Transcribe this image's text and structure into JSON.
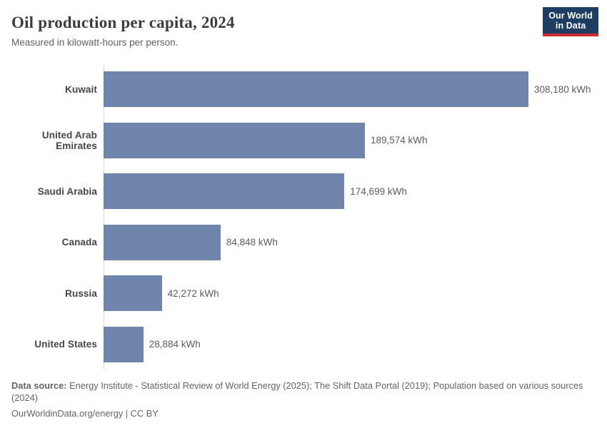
{
  "header": {
    "title": "Oil production per capita, 2024",
    "subtitle": "Measured in kilowatt-hours per person.",
    "logo": {
      "line1": "Our World",
      "line2": "in Data",
      "bg_color": "#1d3d63",
      "accent_color": "#cc2a2e"
    }
  },
  "chart_data": {
    "type": "bar",
    "orientation": "horizontal",
    "title": "Oil production per capita, 2024",
    "subtitle": "Measured in kilowatt-hours per person.",
    "unit": "kWh",
    "categories": [
      "Kuwait",
      "United Arab Emirates",
      "Saudi Arabia",
      "Canada",
      "Russia",
      "United States"
    ],
    "values": [
      308180,
      189574,
      174699,
      84848,
      42272,
      28884
    ],
    "value_labels": [
      "308,180 kWh",
      "189,574 kWh",
      "174,699 kWh",
      "84,848 kWh",
      "42,272 kWh",
      "28,884 kWh"
    ],
    "xlim": [
      0,
      308180
    ],
    "bar_color": "#7085ab",
    "axis_color": "#d7d7d7",
    "grid": false,
    "legend": "none"
  },
  "footer": {
    "source_label": "Data source:",
    "source_text": " Energy Institute - Statistical Review of World Energy (2025); The Shift Data Portal (2019); Population based on various sources (2024)",
    "link_text": "OurWorldinData.org/energy | CC BY"
  }
}
